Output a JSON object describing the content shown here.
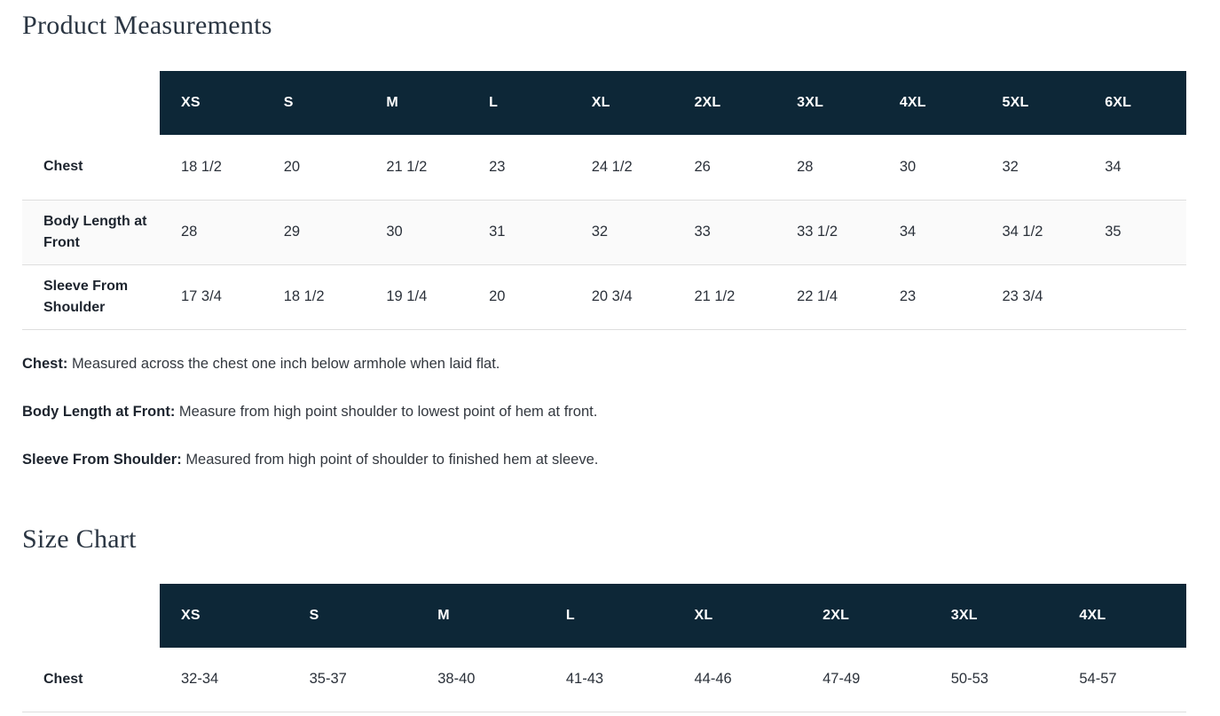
{
  "colors": {
    "header_bg": "#0d2737",
    "header_text": "#ffffff",
    "title_color": "#2a3542",
    "stripe_bg": "#fafafa",
    "border": "#dedede"
  },
  "product_measurements": {
    "title": "Product Measurements",
    "table": {
      "columns": [
        "XS",
        "S",
        "M",
        "L",
        "XL",
        "2XL",
        "3XL",
        "4XL",
        "5XL",
        "6XL"
      ],
      "rows": [
        {
          "label": "Chest",
          "values": [
            "18 1/2",
            "20",
            "21 1/2",
            "23",
            "24 1/2",
            "26",
            "28",
            "30",
            "32",
            "34"
          ]
        },
        {
          "label": "Body Length at Front",
          "values": [
            "28",
            "29",
            "30",
            "31",
            "32",
            "33",
            "33 1/2",
            "34",
            "34 1/2",
            "35"
          ]
        },
        {
          "label": "Sleeve From Shoulder",
          "values": [
            "17 3/4",
            "18 1/2",
            "19 1/4",
            "20",
            "20 3/4",
            "21 1/2",
            "22 1/4",
            "23",
            "23 3/4",
            ""
          ]
        }
      ]
    },
    "notes": [
      {
        "label": "Chest:",
        "text": "Measured across the chest one inch below armhole when laid flat."
      },
      {
        "label": "Body Length at Front:",
        "text": "Measure from high point shoulder to lowest point of hem at front."
      },
      {
        "label": "Sleeve From Shoulder:",
        "text": "Measured from high point of shoulder to finished hem at sleeve."
      }
    ]
  },
  "size_chart": {
    "title": "Size Chart",
    "table": {
      "columns": [
        "XS",
        "S",
        "M",
        "L",
        "XL",
        "2XL",
        "3XL",
        "4XL"
      ],
      "rows": [
        {
          "label": "Chest",
          "values": [
            "32-34",
            "35-37",
            "38-40",
            "41-43",
            "44-46",
            "47-49",
            "50-53",
            "54-57"
          ]
        }
      ]
    }
  }
}
